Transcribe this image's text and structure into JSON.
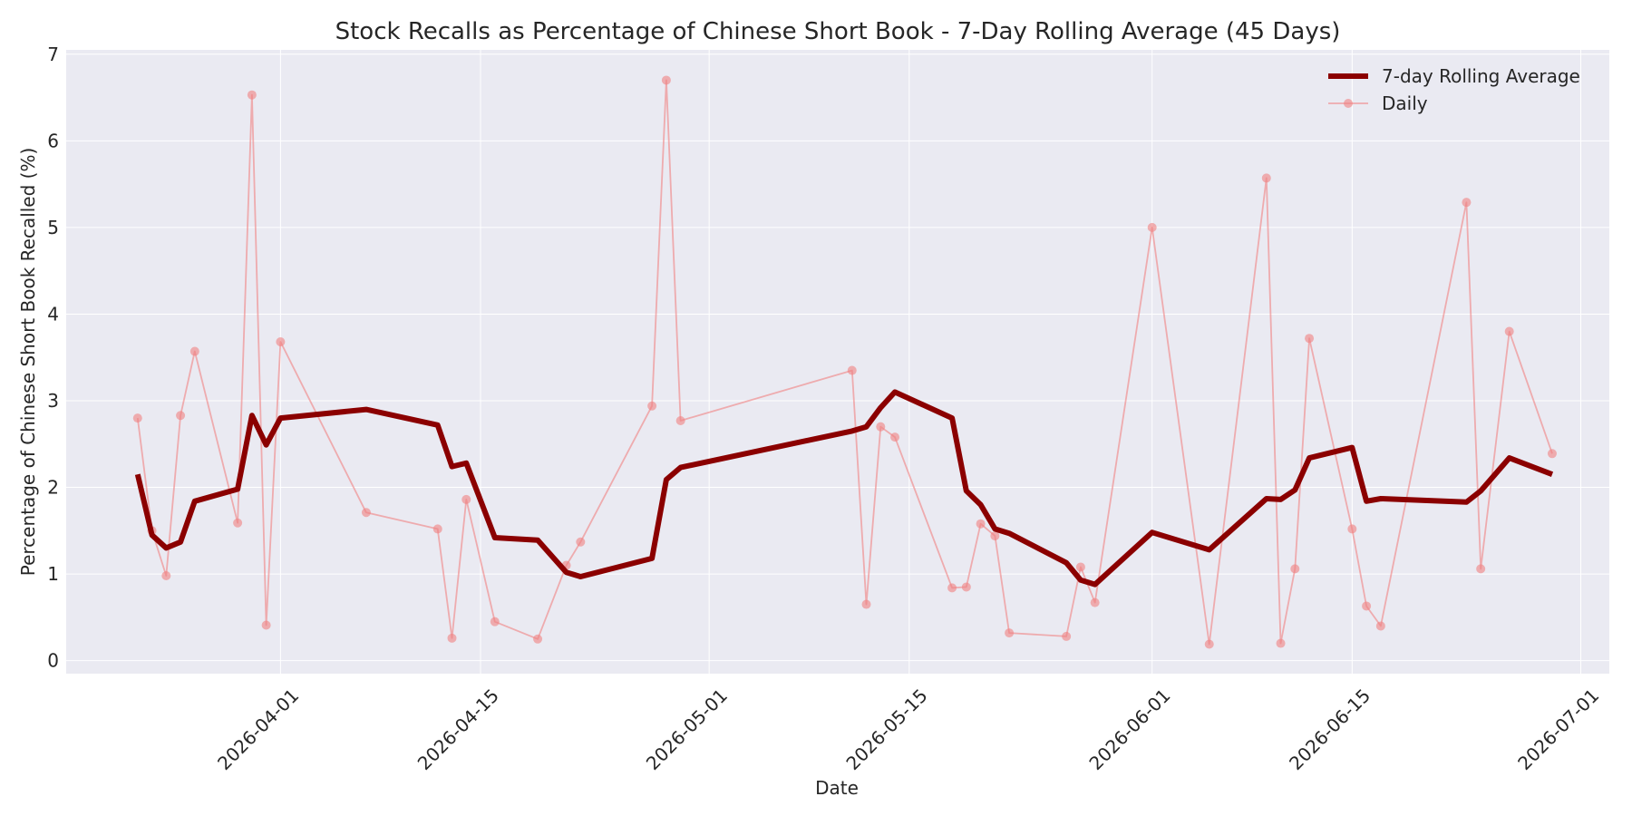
{
  "chart_data": {
    "type": "line",
    "title": "Stock Recalls as Percentage of Chinese Short Book - 7-Day Rolling Average (45 Days)",
    "xlabel": "Date",
    "ylabel": "Percentage of Chinese Short Book Recalled (%)",
    "ylim": [
      -0.15,
      7.05
    ],
    "xlim": [
      "2026-03-17",
      "2026-07-03"
    ],
    "yticks": [
      0,
      1,
      2,
      3,
      4,
      5,
      6,
      7
    ],
    "xticks": [
      "2026-04-01",
      "2026-04-15",
      "2026-05-01",
      "2026-05-15",
      "2026-06-01",
      "2026-06-15",
      "2026-07-01"
    ],
    "grid": true,
    "legend_position": "top-right",
    "colors": {
      "plot_background": "#eaeaf2",
      "grid": "#ffffff",
      "rolling": "#8b0000",
      "daily": "#f08080"
    },
    "x": [
      "2026-03-22",
      "2026-03-23",
      "2026-03-24",
      "2026-03-25",
      "2026-03-26",
      "2026-03-29",
      "2026-03-30",
      "2026-03-31",
      "2026-04-01",
      "2026-04-07",
      "2026-04-12",
      "2026-04-13",
      "2026-04-14",
      "2026-04-16",
      "2026-04-19",
      "2026-04-21",
      "2026-04-22",
      "2026-04-27",
      "2026-04-28",
      "2026-04-29",
      "2026-05-11",
      "2026-05-12",
      "2026-05-13",
      "2026-05-14",
      "2026-05-18",
      "2026-05-19",
      "2026-05-20",
      "2026-05-21",
      "2026-05-22",
      "2026-05-26",
      "2026-05-27",
      "2026-05-28",
      "2026-06-01",
      "2026-06-05",
      "2026-06-09",
      "2026-06-10",
      "2026-06-11",
      "2026-06-12",
      "2026-06-15",
      "2026-06-16",
      "2026-06-17",
      "2026-06-23",
      "2026-06-24",
      "2026-06-26",
      "2026-06-29"
    ],
    "series": [
      {
        "name": "7-day Rolling Average",
        "values": [
          2.15,
          1.45,
          1.3,
          1.37,
          1.84,
          1.98,
          2.83,
          2.49,
          2.8,
          2.9,
          2.72,
          2.24,
          2.28,
          1.42,
          1.39,
          1.02,
          0.97,
          1.18,
          2.09,
          2.23,
          2.65,
          2.7,
          2.92,
          3.1,
          2.8,
          1.96,
          1.8,
          1.52,
          1.47,
          1.13,
          0.93,
          0.88,
          1.48,
          1.28,
          1.87,
          1.86,
          1.97,
          2.34,
          2.46,
          1.84,
          1.87,
          1.83,
          1.96,
          2.34,
          2.15
        ]
      },
      {
        "name": "Daily",
        "values": [
          2.8,
          1.5,
          0.98,
          2.83,
          3.57,
          1.59,
          6.53,
          0.41,
          3.68,
          1.71,
          1.52,
          0.26,
          1.86,
          0.45,
          0.25,
          1.1,
          1.37,
          2.94,
          6.7,
          2.77,
          3.35,
          0.65,
          2.7,
          2.58,
          0.84,
          0.85,
          1.58,
          1.44,
          0.32,
          0.28,
          1.08,
          0.67,
          5.0,
          0.19,
          5.57,
          0.2,
          1.06,
          3.72,
          1.52,
          0.63,
          0.4,
          5.29,
          1.06,
          3.8,
          2.39
        ]
      }
    ]
  }
}
